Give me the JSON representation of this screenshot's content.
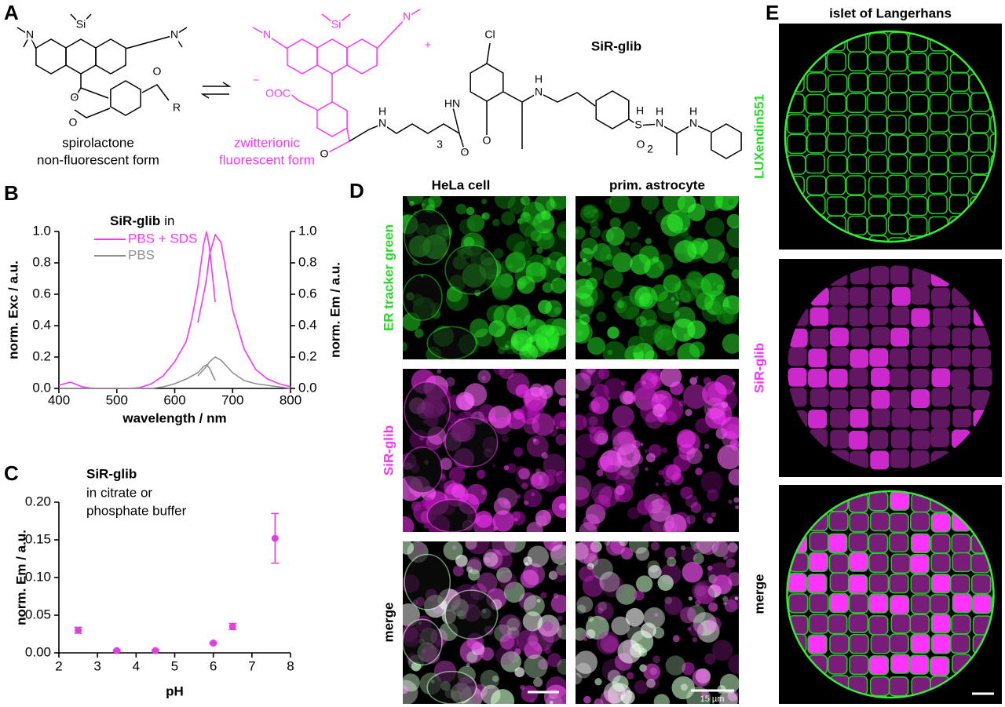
{
  "panel_labels": [
    "A",
    "B",
    "C",
    "D",
    "E"
  ],
  "panel_a": {
    "left_atoms": [
      "N",
      "Si",
      "N",
      "O",
      "O",
      "O",
      "R"
    ],
    "left_caption": [
      "spirolactone",
      "non-fluorescent form"
    ],
    "right_atoms": [
      "N",
      "Si",
      "N",
      "+",
      "−",
      "OOC",
      "O",
      "H",
      "N",
      "3",
      "O",
      "HN",
      "Cl",
      "O",
      "H",
      "N",
      "H",
      "S",
      "H",
      "N",
      "O",
      "2",
      "H",
      "N"
    ],
    "right_caption": [
      "zwitterionic",
      "fluorescent form"
    ],
    "name": "SiR-glib"
  },
  "chart_data": [
    {
      "type": "line",
      "title": "SiR-glib",
      "title_suffix": "in",
      "xlabel": "wavelength / nm",
      "ylabel": "norm. Exc / a.u.",
      "y2label": "norm. Em / a.u.",
      "x": [
        400,
        420,
        440,
        460,
        480,
        500,
        520,
        540,
        560,
        580,
        600,
        620,
        630,
        640,
        650,
        655,
        660,
        670,
        680,
        690,
        700,
        720,
        740,
        760,
        780,
        800
      ],
      "series": [
        {
          "name": "PBS + SDS",
          "color": "#ff33ff",
          "values": [
            0.02,
            0.04,
            0.01,
            0,
            0,
            0,
            0,
            0.005,
            0.03,
            0.08,
            0.17,
            0.3,
            0.45,
            0.65,
            0.92,
            1.0,
            0.9,
            0.55,
            null,
            null,
            null,
            null,
            null,
            null,
            null,
            null
          ],
          "emission": [
            null,
            null,
            null,
            null,
            null,
            null,
            null,
            null,
            null,
            null,
            null,
            null,
            null,
            0.42,
            0.6,
            0.7,
            0.85,
            0.98,
            0.93,
            0.72,
            0.5,
            0.25,
            0.12,
            0.06,
            0.03,
            0.01
          ]
        },
        {
          "name": "PBS",
          "color": "#909090",
          "values": [
            0,
            0,
            0,
            0,
            0,
            0,
            0,
            0,
            0,
            0.01,
            0.03,
            0.06,
            0.08,
            0.1,
            0.14,
            0.15,
            0.13,
            0.05,
            null,
            null,
            null,
            null,
            null,
            null,
            null,
            null
          ],
          "emission": [
            null,
            null,
            null,
            null,
            null,
            null,
            null,
            null,
            null,
            null,
            null,
            null,
            null,
            0.08,
            0.12,
            0.14,
            0.17,
            0.2,
            0.18,
            0.14,
            0.1,
            0.05,
            0.03,
            0.02,
            0.01,
            0
          ]
        }
      ],
      "xlim": [
        400,
        800
      ],
      "xticks": [
        400,
        500,
        600,
        700,
        800
      ],
      "ylim": [
        0,
        1
      ],
      "yticks": [
        {
          "value": 0,
          "label": "0.0"
        },
        {
          "value": 0.2,
          "label": "0.2"
        },
        {
          "value": 0.4,
          "label": "0.4"
        },
        {
          "value": 0.6,
          "label": "0.6"
        },
        {
          "value": 0.8,
          "label": "0.8"
        },
        {
          "value": 1,
          "label": "1.0"
        }
      ],
      "y2lim": [
        0,
        1
      ],
      "y2ticks": [
        {
          "value": 0,
          "label": "0.0"
        },
        {
          "value": 0.2,
          "label": "0.2"
        },
        {
          "value": 0.4,
          "label": "0.4"
        },
        {
          "value": 0.6,
          "label": "0.6"
        },
        {
          "value": 0.8,
          "label": "0.8"
        },
        {
          "value": 1,
          "label": "1.0"
        }
      ]
    },
    {
      "type": "scatter",
      "title": "SiR-glib",
      "subtitle": [
        "in citrate or",
        "phosphate buffer"
      ],
      "xlabel": "pH",
      "ylabel": "norm. Em / a.u.",
      "x": [
        2.5,
        3.5,
        4.5,
        6,
        6.5,
        7.6
      ],
      "values": [
        0.03,
        0.003,
        0.003,
        0.013,
        0.035,
        0.152
      ],
      "errors": [
        0.004,
        0.001,
        0.001,
        0.001,
        0.004,
        0.033
      ],
      "color": "#e040e0",
      "xlim": [
        2,
        8
      ],
      "xticks": [
        2,
        3,
        4,
        5,
        6,
        7,
        8
      ],
      "ylim": [
        0,
        0.2
      ],
      "yticks": [
        {
          "value": 0,
          "label": "0.00"
        },
        {
          "value": 0.05,
          "label": "0.05"
        },
        {
          "value": 0.1,
          "label": "0.10"
        },
        {
          "value": 0.15,
          "label": "0.15"
        },
        {
          "value": 0.2,
          "label": "0.20"
        }
      ]
    }
  ],
  "panel_d": {
    "columns": [
      "HeLa cell",
      "prim. astrocyte"
    ],
    "rows": [
      "ER tracker green",
      "SiR-glib",
      "merge"
    ],
    "scale_bar": "15 µm"
  },
  "panel_e": {
    "title": "islet of Langerhans",
    "rows": [
      "LUXendin551",
      "SiR-glib",
      "merge"
    ]
  }
}
